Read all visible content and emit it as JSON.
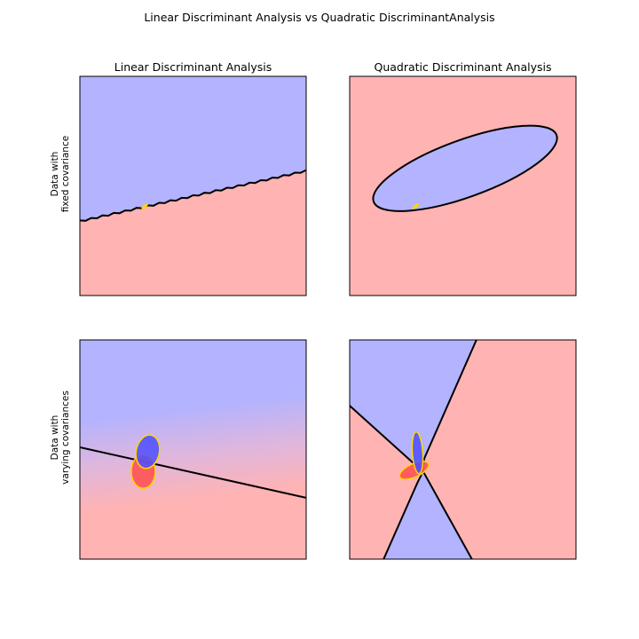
{
  "figure": {
    "suptitle": "Linear Discriminant Analysis vs Quadratic DiscriminantAnalysis",
    "column_titles": [
      "Linear Discriminant Analysis",
      "Quadratic Discriminant Analysis"
    ],
    "row_labels": [
      [
        "Data with",
        "fixed covariance"
      ],
      [
        "Data with",
        "varying covariances"
      ]
    ]
  },
  "colors": {
    "class_0_region": "#ffb3b3",
    "class_1_region": "#b3b3ff",
    "class_0_ellipse": "#ff4d4d",
    "class_1_ellipse": "#4d4dff",
    "ellipse_edge": "#ffd700",
    "boundary": "#000000"
  },
  "chart_data": [
    {
      "type": "scatter",
      "title": "Linear Discriminant Analysis",
      "row": "Data with fixed covariance",
      "xlim": [
        0,
        1
      ],
      "ylim": [
        0,
        1
      ],
      "ticks": "none",
      "boundary": {
        "kind": "linear",
        "points": [
          [
            0.0,
            0.34
          ],
          [
            1.0,
            0.57
          ]
        ]
      },
      "regions": {
        "above": "class_1",
        "below": "class_0"
      },
      "ellipses": [
        {
          "class": "class_0",
          "center": [
            0.285,
            0.405
          ],
          "rx": 0.012,
          "ry": 0.004,
          "angle": -35
        },
        {
          "class": "class_1",
          "center": [
            0.29,
            0.41
          ],
          "rx": 0.01,
          "ry": 0.003,
          "angle": -35
        }
      ]
    },
    {
      "type": "scatter",
      "title": "Quadratic Discriminant Analysis",
      "row": "Data with fixed covariance",
      "xlim": [
        0,
        1
      ],
      "ylim": [
        0,
        1
      ],
      "ticks": "none",
      "boundary": {
        "kind": "ellipse",
        "center": [
          0.51,
          0.58
        ],
        "rx": 0.43,
        "ry": 0.13,
        "angle": -20
      },
      "regions": {
        "inside": "class_1",
        "outside": "class_0"
      },
      "ellipses": [
        {
          "class": "class_0",
          "center": [
            0.29,
            0.405
          ],
          "rx": 0.012,
          "ry": 0.004,
          "angle": -35
        },
        {
          "class": "class_1",
          "center": [
            0.295,
            0.41
          ],
          "rx": 0.01,
          "ry": 0.003,
          "angle": -35
        }
      ]
    },
    {
      "type": "scatter",
      "title": "Linear Discriminant Analysis",
      "row": "Data with varying covariances",
      "xlim": [
        0,
        1
      ],
      "ylim": [
        0,
        1
      ],
      "ticks": "none",
      "boundary": {
        "kind": "linear",
        "points": [
          [
            0.0,
            0.51
          ],
          [
            1.0,
            0.28
          ]
        ]
      },
      "regions": {
        "above": "class_1",
        "below": "class_0"
      },
      "ellipses": [
        {
          "class": "class_0",
          "center": [
            0.28,
            0.4
          ],
          "rx": 0.053,
          "ry": 0.077,
          "angle": 0
        },
        {
          "class": "class_1",
          "center": [
            0.3,
            0.49
          ],
          "rx": 0.051,
          "ry": 0.077,
          "angle": 12
        }
      ]
    },
    {
      "type": "scatter",
      "title": "Quadratic Discriminant Analysis",
      "row": "Data with varying covariances",
      "xlim": [
        0,
        1
      ],
      "ylim": [
        0,
        1
      ],
      "ticks": "none",
      "boundary": {
        "kind": "quadratic",
        "curves": [
          [
            [
              0.0,
              0.7
            ],
            [
              0.29,
              0.43
            ],
            [
              0.31,
              0.42
            ],
            [
              0.33,
              0.39
            ],
            [
              0.54,
              0.0
            ]
          ],
          [
            [
              0.15,
              0.0
            ],
            [
              0.3,
              0.35
            ],
            [
              0.315,
              0.38
            ],
            [
              0.33,
              0.46
            ],
            [
              0.56,
              1.0
            ]
          ]
        ]
      },
      "regions": {
        "left_and_bottom": "class_1",
        "right_and_top_left": "class_0"
      },
      "ellipses": [
        {
          "class": "class_0",
          "center": [
            0.285,
            0.405
          ],
          "rx": 0.07,
          "ry": 0.03,
          "angle": -25
        },
        {
          "class": "class_1",
          "center": [
            0.3,
            0.485
          ],
          "rx": 0.023,
          "ry": 0.095,
          "angle": -4
        }
      ]
    }
  ]
}
